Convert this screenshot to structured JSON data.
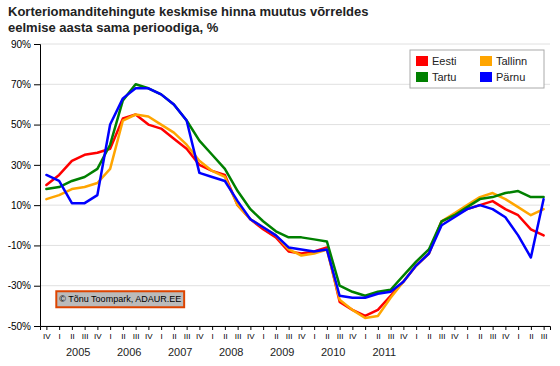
{
  "chart_data": {
    "type": "line",
    "title": "Korteriomanditehingute keskmise hinna muutus võrreldes\neelmise aasta sama perioodiga, %",
    "categories": [
      "IV",
      "I",
      "II",
      "III",
      "IV",
      "I",
      "II",
      "III",
      "IV",
      "I",
      "II",
      "III",
      "IV",
      "I",
      "II",
      "III",
      "IV",
      "I",
      "II",
      "III",
      "IV",
      "I",
      "II",
      "III",
      "IV",
      "I",
      "II",
      "III",
      "IV",
      "I",
      "II",
      "III",
      "IV",
      "I",
      "II",
      "III",
      "IV",
      "I",
      "II",
      "III"
    ],
    "series": [
      {
        "name": "Eesti",
        "color": "#ff0000",
        "values": [
          20,
          25,
          32,
          35,
          36,
          38,
          53,
          55,
          50,
          48,
          43,
          38,
          30,
          27,
          25,
          10,
          3,
          -2,
          -6,
          -13,
          -14,
          -13,
          -11,
          -38,
          -42,
          -45,
          -42,
          -35,
          -28,
          -20,
          -14,
          2,
          5,
          8,
          10,
          12,
          8,
          5,
          -2,
          -5
        ]
      },
      {
        "name": "Tallinn",
        "color": "#ffa500",
        "values": [
          13,
          15,
          18,
          19,
          21,
          28,
          52,
          55,
          54,
          50,
          46,
          40,
          32,
          27,
          24,
          10,
          3,
          -1,
          -5,
          -12,
          -15,
          -14,
          -12,
          -37,
          -42,
          -46,
          -45,
          -36,
          -28,
          -20,
          -14,
          2,
          6,
          10,
          14,
          16,
          13,
          9,
          5,
          8
        ]
      },
      {
        "name": "Tartu",
        "color": "#008000",
        "values": [
          18,
          19,
          22,
          24,
          28,
          40,
          62,
          70,
          68,
          65,
          60,
          52,
          42,
          35,
          28,
          17,
          8,
          2,
          -3,
          -6,
          -6,
          -7,
          -8,
          -30,
          -33,
          -35,
          -33,
          -32,
          -25,
          -18,
          -12,
          2,
          5,
          9,
          13,
          14,
          16,
          17,
          14,
          14
        ]
      },
      {
        "name": "Pärnu",
        "color": "#0000ff",
        "values": [
          25,
          22,
          11,
          11,
          15,
          50,
          63,
          68,
          68,
          65,
          60,
          52,
          26,
          24,
          22,
          12,
          3,
          -1,
          -5,
          -11,
          -12,
          -13,
          -12,
          -35,
          -36,
          -36,
          -34,
          -33,
          -28,
          -20,
          -14,
          0,
          4,
          8,
          10,
          8,
          4,
          -5,
          -16,
          13
        ]
      }
    ],
    "ylim": [
      -50,
      90
    ],
    "yticks": [
      {
        "value": -50,
        "label": "-50%"
      },
      {
        "value": -30,
        "label": "-30%"
      },
      {
        "value": -10,
        "label": "-10%"
      },
      {
        "value": 10,
        "label": "10%"
      },
      {
        "value": 30,
        "label": "30%"
      },
      {
        "value": 50,
        "label": "50%"
      },
      {
        "value": 70,
        "label": "70%"
      },
      {
        "value": 90,
        "label": "90%"
      }
    ],
    "grid": true,
    "legend": "upper right",
    "annotations": [
      {
        "text": "2005",
        "x": 2.5
      },
      {
        "text": "2006",
        "x": 6.5
      },
      {
        "text": "2007",
        "x": 10.5
      },
      {
        "text": "2008",
        "x": 14.5
      },
      {
        "text": "2009",
        "x": 18.5
      },
      {
        "text": "2010",
        "x": 22.5
      },
      {
        "text": "2011",
        "x": 26.5
      },
      {
        "text": "© Tõnu Toompark, ADAUR.EE"
      }
    ]
  }
}
